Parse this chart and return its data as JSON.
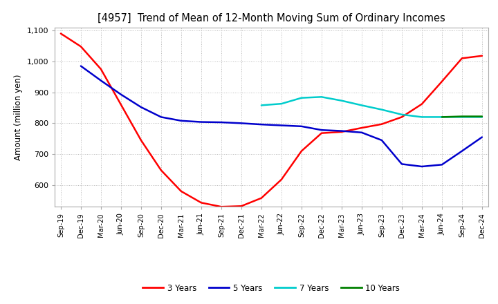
{
  "title": "[4957]  Trend of Mean of 12-Month Moving Sum of Ordinary Incomes",
  "ylabel": "Amount (million yen)",
  "ylim": [
    530,
    1110
  ],
  "yticks": [
    600,
    700,
    800,
    900,
    1000,
    1100
  ],
  "ytick_labels": [
    "600",
    "700",
    "800",
    "900",
    "1,000",
    "1,100"
  ],
  "x_labels": [
    "Sep-19",
    "Dec-19",
    "Mar-20",
    "Jun-20",
    "Sep-20",
    "Dec-20",
    "Mar-21",
    "Jun-21",
    "Sep-21",
    "Dec-21",
    "Mar-22",
    "Jun-22",
    "Sep-22",
    "Dec-22",
    "Mar-23",
    "Jun-23",
    "Sep-23",
    "Dec-23",
    "Mar-24",
    "Jun-24",
    "Sep-24",
    "Dec-24"
  ],
  "background_color": "#ffffff",
  "title_fontsize": 11,
  "legend_labels": [
    "3 Years",
    "5 Years",
    "7 Years",
    "10 Years"
  ],
  "legend_colors": [
    "#ff0000",
    "#0000cc",
    "#00cccc",
    "#008000"
  ],
  "red_y": [
    1090,
    1048,
    975,
    860,
    745,
    648,
    580,
    543,
    530,
    532,
    558,
    618,
    710,
    768,
    772,
    785,
    797,
    820,
    862,
    935,
    1010,
    1018
  ],
  "blue_y": [
    null,
    985,
    938,
    893,
    852,
    820,
    808,
    804,
    803,
    800,
    796,
    793,
    790,
    778,
    775,
    770,
    745,
    668,
    660,
    666,
    710,
    755
  ],
  "cyan_y": [
    null,
    null,
    null,
    null,
    null,
    null,
    null,
    null,
    null,
    null,
    858,
    863,
    882,
    885,
    873,
    858,
    844,
    828,
    820,
    820,
    820,
    820
  ],
  "green_y": [
    null,
    null,
    null,
    null,
    null,
    null,
    null,
    null,
    null,
    null,
    null,
    null,
    null,
    null,
    null,
    null,
    null,
    null,
    null,
    820,
    822,
    822
  ]
}
